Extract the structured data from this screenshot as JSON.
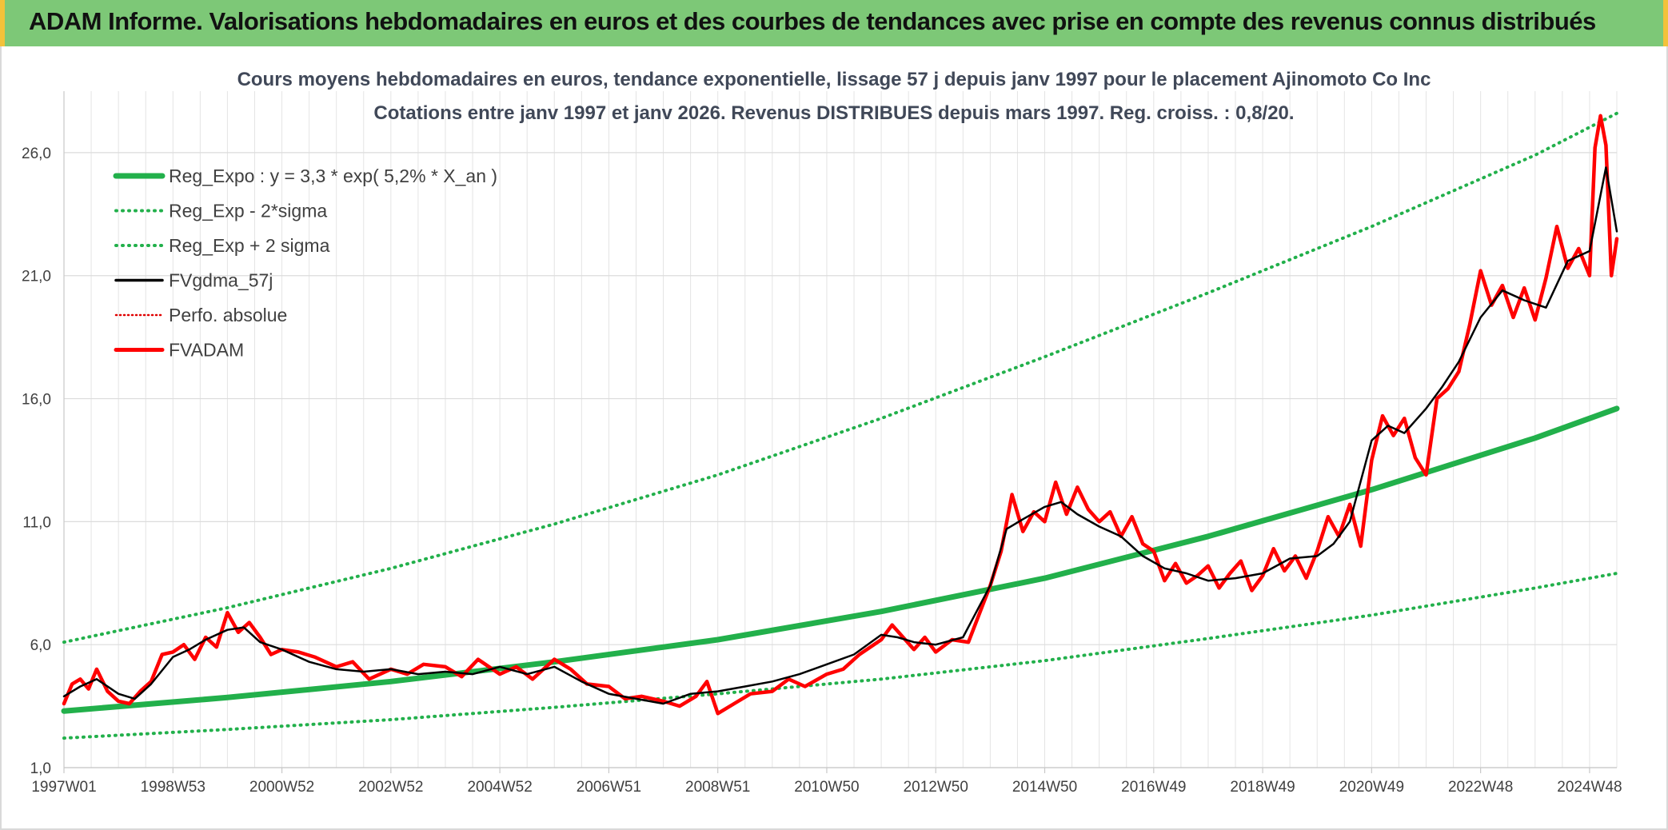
{
  "banner": {
    "title": "ADAM Informe. Valorisations hebdomadaires en euros et des courbes de tendances avec prise en compte des revenus connus distribués",
    "color": "#7dc877",
    "edge_color": "#f2c23a"
  },
  "chart_data": {
    "type": "line",
    "title": "Cours moyens hebdomadaires en euros, tendance exponentielle, lissage 57 j depuis janv 1997 pour le placement Ajinomoto Co Inc",
    "subtitle": "Cotations entre janv 1997 et janv 2026. Revenus DISTRIBUES depuis mars 1997. Reg. croiss. : 0,8/20.",
    "xlabel": "",
    "ylabel": "",
    "x_tick_labels": [
      "1997W01",
      "1998W53",
      "2000W52",
      "2002W52",
      "2004W52",
      "2006W51",
      "2008W51",
      "2010W50",
      "2012W50",
      "2014W50",
      "2016W49",
      "2018W49",
      "2020W49",
      "2022W48",
      "2024W48"
    ],
    "xlim": [
      1997.0,
      2025.5
    ],
    "ylim": [
      1.0,
      28.5
    ],
    "y_ticks": [
      1.0,
      6.0,
      11.0,
      16.0,
      21.0,
      26.0
    ],
    "y_tick_labels": [
      "1,0",
      "6,0",
      "11,0",
      "16,0",
      "21,0",
      "26,0"
    ],
    "grid": true,
    "legend_position": "top-left",
    "legend": [
      {
        "label": "Reg_Expo : y = 3,3 * exp( 5,2% *  X_an )",
        "color": "#22b04b",
        "style": "solid-thick"
      },
      {
        "label": "Reg_Exp - 2*sigma",
        "color": "#22b04b",
        "style": "dotted"
      },
      {
        "label": "Reg_Exp + 2 sigma",
        "color": "#22b04b",
        "style": "dotted"
      },
      {
        "label": "FVgdma_57j",
        "color": "#000000",
        "style": "solid"
      },
      {
        "label": "Perfo. absolue",
        "color": "#e00000",
        "style": "dotted"
      },
      {
        "label": "FVADAM",
        "color": "#ff0000",
        "style": "solid-thick"
      }
    ],
    "series": [
      {
        "name": "Reg_Expo : y = 3,3 * exp( 5,2% *  X_an )",
        "color": "#22b04b",
        "x": [
          1997.0,
          2000.0,
          2003.0,
          2006.0,
          2009.0,
          2012.0,
          2015.0,
          2018.0,
          2021.0,
          2024.0,
          2025.5
        ],
        "values": [
          3.3,
          3.85,
          4.5,
          5.3,
          6.2,
          7.35,
          8.7,
          10.4,
          12.3,
          14.4,
          15.6
        ]
      },
      {
        "name": "Reg_Exp - 2*sigma",
        "color": "#22b04b",
        "x": [
          1997.0,
          2000.0,
          2003.0,
          2006.0,
          2009.0,
          2012.0,
          2015.0,
          2018.0,
          2021.0,
          2024.0,
          2025.5
        ],
        "values": [
          2.2,
          2.55,
          2.95,
          3.45,
          4.0,
          4.6,
          5.35,
          6.25,
          7.2,
          8.3,
          8.9
        ]
      },
      {
        "name": "Reg_Exp + 2 sigma",
        "color": "#22b04b",
        "x": [
          1997.0,
          2000.0,
          2003.0,
          2006.0,
          2009.0,
          2012.0,
          2015.0,
          2018.0,
          2021.0,
          2024.0,
          2025.5
        ],
        "values": [
          6.1,
          7.5,
          9.1,
          10.9,
          12.9,
          15.2,
          17.7,
          20.3,
          23.0,
          25.9,
          27.6
        ]
      },
      {
        "name": "FVgdma_57j",
        "color": "#000000",
        "x": [
          1997.0,
          1997.3,
          1997.6,
          1998.0,
          1998.3,
          1998.6,
          1999.0,
          1999.3,
          1999.6,
          2000.0,
          2000.3,
          2000.6,
          2001.0,
          2001.5,
          2002.0,
          2002.5,
          2003.0,
          2003.5,
          2004.0,
          2004.5,
          2005.0,
          2005.5,
          2006.0,
          2006.5,
          2007.0,
          2007.5,
          2008.0,
          2008.5,
          2009.0,
          2009.5,
          2010.0,
          2010.5,
          2011.0,
          2011.5,
          2012.0,
          2012.3,
          2012.6,
          2013.0,
          2013.5,
          2014.0,
          2014.3,
          2014.6,
          2015.0,
          2015.3,
          2015.6,
          2016.0,
          2016.4,
          2016.8,
          2017.2,
          2017.6,
          2018.0,
          2018.5,
          2019.0,
          2019.5,
          2020.0,
          2020.3,
          2020.6,
          2021.0,
          2021.3,
          2021.6,
          2022.0,
          2022.3,
          2022.6,
          2023.0,
          2023.4,
          2023.8,
          2024.2,
          2024.6,
          2025.0,
          2025.3,
          2025.5
        ],
        "values": [
          3.9,
          4.3,
          4.6,
          4.0,
          3.8,
          4.4,
          5.5,
          5.8,
          6.2,
          6.6,
          6.7,
          6.1,
          5.8,
          5.3,
          5.0,
          4.9,
          5.0,
          4.8,
          4.9,
          4.8,
          5.1,
          4.8,
          5.1,
          4.5,
          4.0,
          3.8,
          3.6,
          4.0,
          4.1,
          4.3,
          4.5,
          4.8,
          5.2,
          5.6,
          6.4,
          6.3,
          6.1,
          6.0,
          6.3,
          8.4,
          10.7,
          11.1,
          11.6,
          11.8,
          11.3,
          10.8,
          10.4,
          9.6,
          9.1,
          8.9,
          8.6,
          8.7,
          8.9,
          9.5,
          9.6,
          10.1,
          11.0,
          14.3,
          14.9,
          14.6,
          15.6,
          16.5,
          17.5,
          19.3,
          20.4,
          20.0,
          19.7,
          21.6,
          22.0,
          25.4,
          22.8
        ]
      },
      {
        "name": "FVADAM",
        "color": "#ff0000",
        "x": [
          1997.0,
          1997.15,
          1997.3,
          1997.45,
          1997.6,
          1997.8,
          1998.0,
          1998.2,
          1998.4,
          1998.6,
          1998.8,
          1999.0,
          1999.2,
          1999.4,
          1999.6,
          1999.8,
          2000.0,
          2000.2,
          2000.4,
          2000.6,
          2000.8,
          2001.0,
          2001.3,
          2001.6,
          2002.0,
          2002.3,
          2002.6,
          2003.0,
          2003.3,
          2003.6,
          2004.0,
          2004.3,
          2004.6,
          2005.0,
          2005.3,
          2005.6,
          2006.0,
          2006.3,
          2006.6,
          2007.0,
          2007.3,
          2007.6,
          2008.0,
          2008.3,
          2008.6,
          2008.8,
          2009.0,
          2009.3,
          2009.6,
          2010.0,
          2010.3,
          2010.6,
          2011.0,
          2011.3,
          2011.6,
          2012.0,
          2012.2,
          2012.4,
          2012.6,
          2012.8,
          2013.0,
          2013.3,
          2013.6,
          2014.0,
          2014.2,
          2014.4,
          2014.6,
          2014.8,
          2015.0,
          2015.2,
          2015.4,
          2015.6,
          2015.8,
          2016.0,
          2016.2,
          2016.4,
          2016.6,
          2016.8,
          2017.0,
          2017.2,
          2017.4,
          2017.6,
          2017.8,
          2018.0,
          2018.2,
          2018.4,
          2018.6,
          2018.8,
          2019.0,
          2019.2,
          2019.4,
          2019.6,
          2019.8,
          2020.0,
          2020.2,
          2020.4,
          2020.6,
          2020.8,
          2021.0,
          2021.2,
          2021.4,
          2021.6,
          2021.8,
          2022.0,
          2022.2,
          2022.4,
          2022.6,
          2022.8,
          2023.0,
          2023.2,
          2023.4,
          2023.6,
          2023.8,
          2024.0,
          2024.2,
          2024.4,
          2024.6,
          2024.8,
          2025.0,
          2025.1,
          2025.2,
          2025.3,
          2025.4,
          2025.5
        ],
        "values": [
          3.6,
          4.4,
          4.6,
          4.2,
          5.0,
          4.1,
          3.7,
          3.6,
          4.1,
          4.5,
          5.6,
          5.7,
          6.0,
          5.4,
          6.3,
          5.9,
          7.3,
          6.5,
          6.9,
          6.3,
          5.6,
          5.8,
          5.7,
          5.5,
          5.1,
          5.3,
          4.6,
          5.0,
          4.8,
          5.2,
          5.1,
          4.7,
          5.4,
          4.8,
          5.1,
          4.6,
          5.4,
          5.0,
          4.4,
          4.3,
          3.8,
          3.9,
          3.7,
          3.5,
          3.9,
          4.5,
          3.2,
          3.6,
          4.0,
          4.1,
          4.6,
          4.3,
          4.8,
          5.0,
          5.6,
          6.2,
          6.8,
          6.3,
          5.8,
          6.3,
          5.7,
          6.2,
          6.1,
          8.4,
          9.8,
          12.1,
          10.6,
          11.4,
          11.0,
          12.6,
          11.3,
          12.4,
          11.5,
          11.0,
          11.4,
          10.4,
          11.2,
          10.1,
          9.8,
          8.6,
          9.3,
          8.5,
          8.8,
          9.2,
          8.3,
          8.9,
          9.4,
          8.2,
          8.8,
          9.9,
          9.0,
          9.6,
          8.7,
          9.8,
          11.2,
          10.4,
          11.7,
          10.0,
          13.5,
          15.3,
          14.5,
          15.2,
          13.6,
          12.9,
          16.0,
          16.4,
          17.1,
          19.0,
          21.2,
          19.8,
          20.6,
          19.3,
          20.5,
          19.2,
          20.9,
          23.0,
          21.3,
          22.1,
          21.0,
          26.2,
          27.5,
          26.3,
          21.0,
          22.5
        ]
      }
    ]
  }
}
